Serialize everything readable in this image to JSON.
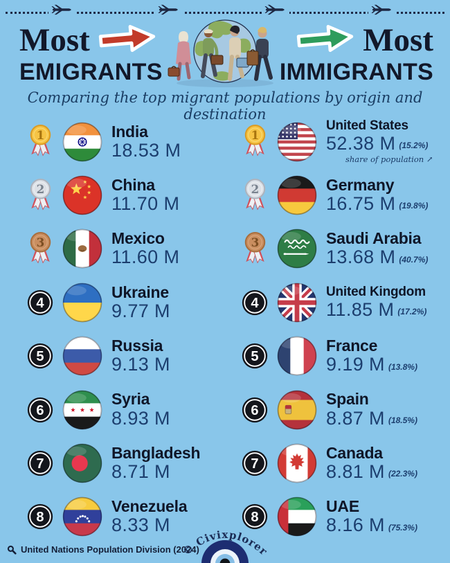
{
  "header": {
    "left_title": "Most",
    "left_subtitle": "EMIGRANTS",
    "right_title": "Most",
    "right_subtitle": "IMMIGRANTS",
    "tagline": "Comparing the top migrant populations by origin and destination"
  },
  "colors": {
    "background": "#89C6EA",
    "title_ink": "#12182A",
    "value_navy": "#1C3E6E",
    "red_arrow": "#C23B2A",
    "green_arrow": "#2E9C5C"
  },
  "emigrants": {
    "rows": [
      {
        "rank": 1,
        "country": "India",
        "value": "18.53 M",
        "flag": "india-flag"
      },
      {
        "rank": 2,
        "country": "China",
        "value": "11.70 M",
        "flag": "china-flag"
      },
      {
        "rank": 3,
        "country": "Mexico",
        "value": "11.60 M",
        "flag": "mexico-flag"
      },
      {
        "rank": 4,
        "country": "Ukraine",
        "value": "9.77 M",
        "flag": "ukraine-flag"
      },
      {
        "rank": 5,
        "country": "Russia",
        "value": "9.13 M",
        "flag": "russia-flag"
      },
      {
        "rank": 6,
        "country": "Syria",
        "value": "8.93 M",
        "flag": "syria-flag"
      },
      {
        "rank": 7,
        "country": "Bangladesh",
        "value": "8.71 M",
        "flag": "bangladesh-flag"
      },
      {
        "rank": 8,
        "country": "Venezuela",
        "value": "8.33 M",
        "flag": "venezuela-flag"
      }
    ]
  },
  "immigrants": {
    "rows": [
      {
        "rank": 1,
        "country": "United States",
        "value": "52.38 M",
        "share": "(15.2%)",
        "note": "share of population ↗",
        "flag": "us-flag"
      },
      {
        "rank": 2,
        "country": "Germany",
        "value": "16.75 M",
        "share": "(19.8%)",
        "flag": "germany-flag"
      },
      {
        "rank": 3,
        "country": "Saudi Arabia",
        "value": "13.68 M",
        "share": "(40.7%)",
        "flag": "saudi-arabia-flag"
      },
      {
        "rank": 4,
        "country": "United Kingdom",
        "value": "11.85 M",
        "share": "(17.2%)",
        "flag": "uk-flag"
      },
      {
        "rank": 5,
        "country": "France",
        "value": "9.19 M",
        "share": "(13.8%)",
        "flag": "france-flag"
      },
      {
        "rank": 6,
        "country": "Spain",
        "value": "8.87 M",
        "share": "(18.5%)",
        "flag": "spain-flag"
      },
      {
        "rank": 7,
        "country": "Canada",
        "value": "8.81 M",
        "share": "(22.3%)",
        "flag": "canada-flag"
      },
      {
        "rank": 8,
        "country": "UAE",
        "value": "8.16 M",
        "share": "(75.3%)",
        "flag": "uae-flag"
      }
    ]
  },
  "footer": {
    "source": "United Nations Population Division (2024)",
    "credit": "© Civixplorer"
  },
  "chart_data": {
    "type": "table",
    "title": "Most Emigrants vs Most Immigrants",
    "subtitle": "Comparing the top migrant populations by origin and destination",
    "unit": "millions of migrants",
    "series": [
      {
        "name": "Most Emigrants (by origin)",
        "columns": [
          "rank",
          "country",
          "migrants_millions"
        ],
        "rows": [
          [
            1,
            "India",
            18.53
          ],
          [
            2,
            "China",
            11.7
          ],
          [
            3,
            "Mexico",
            11.6
          ],
          [
            4,
            "Ukraine",
            9.77
          ],
          [
            5,
            "Russia",
            9.13
          ],
          [
            6,
            "Syria",
            8.93
          ],
          [
            7,
            "Bangladesh",
            8.71
          ],
          [
            8,
            "Venezuela",
            8.33
          ]
        ]
      },
      {
        "name": "Most Immigrants (by destination)",
        "columns": [
          "rank",
          "country",
          "migrants_millions",
          "share_of_population"
        ],
        "rows": [
          [
            1,
            "United States",
            52.38,
            "15.2%"
          ],
          [
            2,
            "Germany",
            16.75,
            "19.8%"
          ],
          [
            3,
            "Saudi Arabia",
            13.68,
            "40.7%"
          ],
          [
            4,
            "United Kingdom",
            11.85,
            "17.2%"
          ],
          [
            5,
            "France",
            9.19,
            "13.8%"
          ],
          [
            6,
            "Spain",
            8.87,
            "18.5%"
          ],
          [
            7,
            "Canada",
            8.81,
            "22.3%"
          ],
          [
            8,
            "UAE",
            8.16,
            "75.3%"
          ]
        ]
      }
    ],
    "source": "United Nations Population Division (2024)"
  }
}
